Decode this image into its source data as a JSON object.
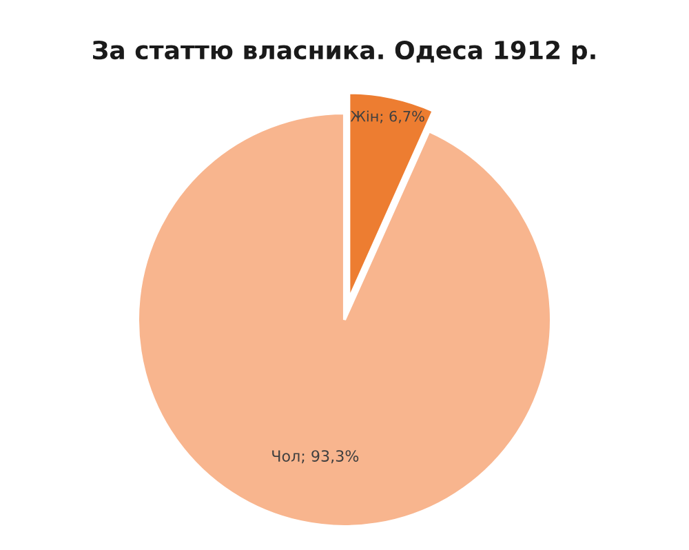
{
  "chart_data": {
    "type": "pie",
    "title": "За статтю власника. Одеса 1912 р.",
    "categories": [
      "Жін",
      "Чол"
    ],
    "values": [
      6.7,
      93.3
    ],
    "colors": [
      "#ed7d31",
      "#f8b58e"
    ],
    "value_labels": [
      "6,7%",
      "93,3%"
    ]
  }
}
